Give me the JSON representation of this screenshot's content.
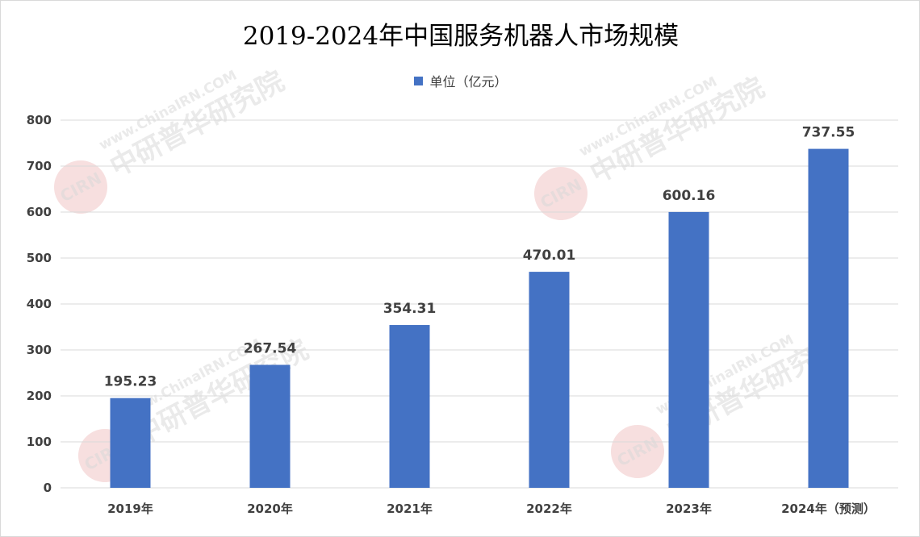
{
  "chart_data": {
    "type": "bar",
    "title": "2019-2024年中国服务机器人市场规模",
    "categories": [
      "2019年",
      "2020年",
      "2021年",
      "2022年",
      "2023年",
      "2024年（预测）"
    ],
    "series": [
      {
        "name": "单位（亿元）",
        "values": [
          195.23,
          267.54,
          354.31,
          470.01,
          600.16,
          737.55
        ],
        "labels": [
          "195.23",
          "267.54",
          "354.31",
          "470.01",
          "600.16",
          "737.55"
        ],
        "color": "#4472c4"
      }
    ],
    "yticks": [
      "0",
      "100",
      "200",
      "300",
      "400",
      "500",
      "600",
      "700",
      "800"
    ],
    "ylim": [
      0,
      800
    ],
    "grid": true,
    "legend_position": "top"
  },
  "watermark": {
    "logo_text": "CIRN",
    "url_text": "www.ChinaIRN.COM",
    "org_text": "中研普华研究院"
  },
  "colors": {
    "bar": "#4472c4",
    "grid": "#d9d9d9",
    "text": "#404040",
    "watermark_red": "#e8a3a3"
  }
}
